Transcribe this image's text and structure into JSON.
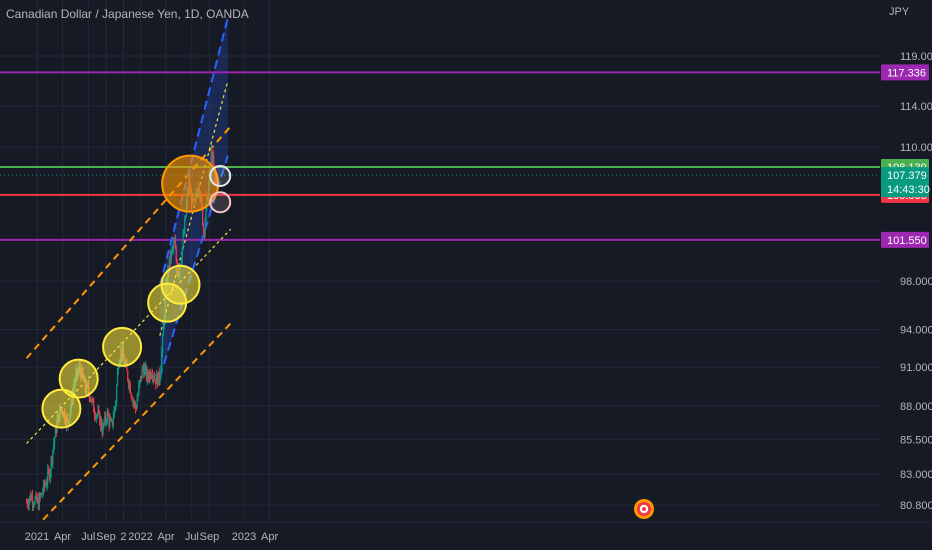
{
  "header": {
    "title": "Canadian Dollar / Japanese Yen, 1D, OANDA",
    "currency": "JPY"
  },
  "chart_data": {
    "type": "candlestick",
    "instrument": "Canadian Dollar / Japanese Yen",
    "timeframe": "1D",
    "source": "OANDA",
    "currency": "JPY",
    "y_scale": "log",
    "ylim": [
      79.5,
      124.0
    ],
    "price_ticks": [
      "119.000",
      "114.000",
      "110.000",
      "98.000",
      "94.000",
      "91.000",
      "88.000",
      "85.500",
      "83.000",
      "80.800"
    ],
    "time_labels": [
      {
        "label": "2021",
        "date": "2021-01-01"
      },
      {
        "label": "Apr",
        "date": "2021-04-01"
      },
      {
        "label": "Jul",
        "date": "2021-07-01"
      },
      {
        "label": "Sep",
        "date": "2021-09-01"
      },
      {
        "label": "2",
        "date": "2021-11-02"
      },
      {
        "label": "2022",
        "date": "2022-01-01"
      },
      {
        "label": "Apr",
        "date": "2022-04-01"
      },
      {
        "label": "Jul",
        "date": "2022-07-01"
      },
      {
        "label": "Sep",
        "date": "2022-09-01"
      },
      {
        "label": "2023",
        "date": "2023-01-01"
      },
      {
        "label": "Apr",
        "date": "2023-04-01"
      }
    ],
    "price_path": [
      [
        "2020-11-25",
        81.0
      ],
      [
        "2020-12-10",
        81.4
      ],
      [
        "2021-01-05",
        80.9
      ],
      [
        "2021-01-25",
        82.0
      ],
      [
        "2021-02-15",
        83.2
      ],
      [
        "2021-03-05",
        85.8
      ],
      [
        "2021-03-15",
        87.0
      ],
      [
        "2021-03-30",
        87.9
      ],
      [
        "2021-04-10",
        87.2
      ],
      [
        "2021-04-20",
        86.6
      ],
      [
        "2021-05-01",
        88.2
      ],
      [
        "2021-05-15",
        90.0
      ],
      [
        "2021-06-01",
        90.9
      ],
      [
        "2021-06-20",
        89.4
      ],
      [
        "2021-07-05",
        89.0
      ],
      [
        "2021-07-20",
        87.8
      ],
      [
        "2021-08-10",
        87.0
      ],
      [
        "2021-08-20",
        86.2
      ],
      [
        "2021-09-05",
        87.4
      ],
      [
        "2021-09-20",
        86.4
      ],
      [
        "2021-10-05",
        88.2
      ],
      [
        "2021-10-15",
        91.5
      ],
      [
        "2021-10-25",
        92.4
      ],
      [
        "2021-11-05",
        91.3
      ],
      [
        "2021-11-20",
        90.0
      ],
      [
        "2021-12-05",
        88.5
      ],
      [
        "2021-12-15",
        87.8
      ],
      [
        "2021-12-28",
        89.6
      ],
      [
        "2022-01-10",
        91.0
      ],
      [
        "2022-01-25",
        90.2
      ],
      [
        "2022-02-10",
        90.8
      ],
      [
        "2022-02-25",
        90.0
      ],
      [
        "2022-03-10",
        90.2
      ],
      [
        "2022-03-20",
        93.0
      ],
      [
        "2022-03-28",
        96.0
      ],
      [
        "2022-04-05",
        98.6
      ],
      [
        "2022-04-20",
        100.4
      ],
      [
        "2022-05-01",
        101.2
      ],
      [
        "2022-05-12",
        98.6
      ],
      [
        "2022-05-25",
        100.2
      ],
      [
        "2022-06-05",
        102.6
      ],
      [
        "2022-06-12",
        104.6
      ],
      [
        "2022-06-20",
        106.7
      ],
      [
        "2022-06-28",
        105.3
      ],
      [
        "2022-07-10",
        104.5
      ],
      [
        "2022-07-25",
        106.9
      ],
      [
        "2022-08-05",
        104.2
      ],
      [
        "2022-08-12",
        102.2
      ],
      [
        "2022-08-20",
        104.2
      ],
      [
        "2022-08-30",
        106.6
      ],
      [
        "2022-09-07",
        109.4
      ],
      [
        "2022-09-15",
        108.3
      ],
      [
        "2022-09-25",
        106.6
      ],
      [
        "2022-09-30",
        107.38
      ]
    ],
    "horizontal_levels": [
      {
        "price": 117.336,
        "label": "117.336",
        "color": "#9c27b0"
      },
      {
        "price": 108.139,
        "label": "108.139",
        "color": "#4caf50"
      },
      {
        "price": 105.565,
        "label": "105.565",
        "color": "#f23645"
      },
      {
        "price": 101.55,
        "label": "101.550",
        "color": "#9c27b0"
      }
    ],
    "current_price": {
      "label": "107.379",
      "countdown": "14:43:30",
      "color": "#089981"
    },
    "long_channel": {
      "color": "#ff9800",
      "upper": [
        [
          "2020-11-25",
          91.7
        ],
        [
          "2022-11-15",
          112.0
        ]
      ],
      "middle": [
        [
          "2020-11-25",
          85.2
        ],
        [
          "2022-11-15",
          102.5
        ]
      ],
      "lower": [
        [
          "2020-11-25",
          78.6
        ],
        [
          "2022-11-15",
          94.5
        ]
      ]
    },
    "short_channel": {
      "color": "#2962ff",
      "upper": [
        [
          "2022-03-10",
          97.6
        ],
        [
          "2022-11-05",
          123.0
        ]
      ],
      "middle": [
        [
          "2022-03-10",
          93.5
        ],
        [
          "2022-11-05",
          116.5
        ]
      ],
      "lower": [
        [
          "2022-03-10",
          90.2
        ],
        [
          "2022-11-05",
          109.2
        ]
      ]
    },
    "highlight_circles": [
      {
        "date": "2021-03-28",
        "price": 87.8,
        "color": "#ffeb3b"
      },
      {
        "date": "2021-05-28",
        "price": 90.1,
        "color": "#ffeb3b"
      },
      {
        "date": "2021-10-28",
        "price": 92.6,
        "color": "#ffeb3b"
      },
      {
        "date": "2022-04-05",
        "price": 96.2,
        "color": "#ffeb3b"
      },
      {
        "date": "2022-05-22",
        "price": 97.7,
        "color": "#ffeb3b"
      },
      {
        "date": "2022-06-25",
        "price": 106.6,
        "color": "#ff9800"
      },
      {
        "date": "2022-10-09",
        "price": 107.3,
        "color": "#e8e8f0"
      },
      {
        "date": "2022-10-09",
        "price": 104.9,
        "color": "#f7c6c9"
      }
    ]
  }
}
